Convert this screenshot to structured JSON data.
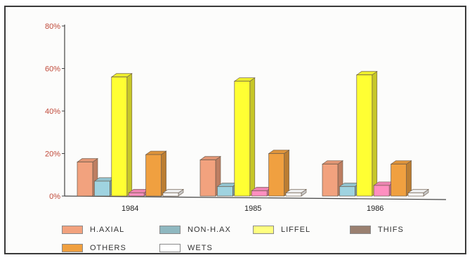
{
  "chart_data": {
    "type": "bar",
    "categories": [
      "1984",
      "1985",
      "1986"
    ],
    "series": [
      {
        "name": "H.AXIAL",
        "color": "#f2a27e",
        "values": [
          16,
          17,
          15
        ]
      },
      {
        "name": "NON-H.AX",
        "color": "#9fd3e0",
        "values": [
          7,
          4.5,
          4.5
        ]
      },
      {
        "name": "LIFFEL",
        "color": "#ffff33",
        "values": [
          56,
          54,
          57
        ]
      },
      {
        "name": "THIFS",
        "color": "#ff8fc0",
        "values": [
          1.5,
          2.5,
          5
        ]
      },
      {
        "name": "OTHERS",
        "color": "#f0a040",
        "values": [
          19.5,
          20,
          15
        ]
      },
      {
        "name": "WETS",
        "color": "#ffffff",
        "values": [
          1.5,
          1.5,
          1.5
        ]
      }
    ],
    "legend_colors": {
      "H.AXIAL": "#f2a27e",
      "NON-H.AX": "#8fb8c0",
      "LIFFEL": "#ffff80",
      "THIFS": "#9a8070",
      "OTHERS": "#f0a040",
      "WETS": "#ffffff"
    },
    "y_ticks": [
      "0%",
      "20%",
      "40%",
      "60%",
      "80%"
    ],
    "ylim": [
      0,
      80
    ],
    "grid": false,
    "legend_position": "bottom"
  }
}
